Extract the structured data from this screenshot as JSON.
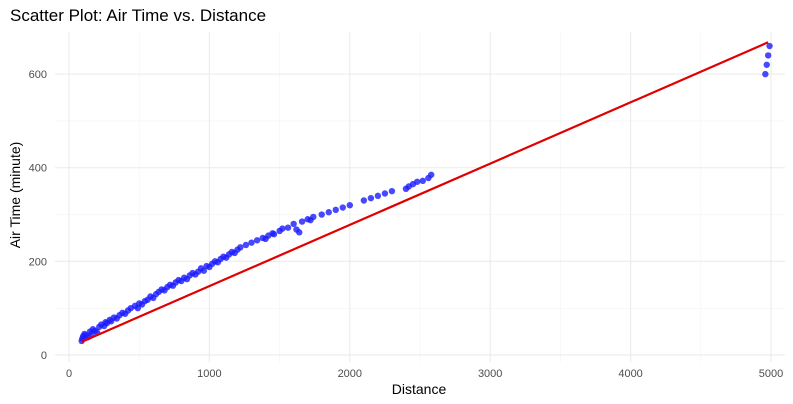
{
  "chart_data": {
    "type": "scatter",
    "title": "Scatter Plot: Air Time vs. Distance",
    "xlabel": "Distance",
    "ylabel": "Air Time (minute)",
    "xlim": [
      -100,
      5100
    ],
    "ylim": [
      -15,
      690
    ],
    "x_ticks": [
      0,
      1000,
      2000,
      3000,
      4000,
      5000
    ],
    "y_ticks": [
      0,
      200,
      400,
      600
    ],
    "grid": true,
    "legend": "none",
    "point_color": "#1a1aff",
    "line_color": "#e00000",
    "series": [
      {
        "kind": "points",
        "x": [
          90,
          95,
          100,
          110,
          120,
          135,
          150,
          160,
          170,
          185,
          200,
          215,
          230,
          250,
          260,
          270,
          290,
          300,
          320,
          340,
          360,
          380,
          400,
          420,
          440,
          470,
          490,
          500,
          520,
          540,
          560,
          580,
          600,
          620,
          640,
          660,
          680,
          700,
          720,
          740,
          760,
          780,
          800,
          820,
          840,
          860,
          880,
          900,
          920,
          940,
          960,
          980,
          1000,
          1020,
          1040,
          1060,
          1080,
          1100,
          1120,
          1140,
          1160,
          1180,
          1200,
          1220,
          1260,
          1300,
          1340,
          1380,
          1400,
          1420,
          1450,
          1460,
          1500,
          1520,
          1560,
          1600,
          1620,
          1640,
          1660,
          1700,
          1720,
          1740,
          1800,
          1850,
          1900,
          1950,
          2000,
          2100,
          2150,
          2200,
          2250,
          2300,
          2400,
          2420,
          2450,
          2480,
          2520,
          2560,
          2580,
          4960,
          4970,
          4980,
          4990
        ],
        "y": [
          30,
          35,
          40,
          45,
          42,
          38,
          50,
          45,
          55,
          52,
          48,
          60,
          65,
          62,
          70,
          68,
          75,
          72,
          80,
          78,
          85,
          90,
          88,
          95,
          100,
          105,
          100,
          110,
          108,
          115,
          118,
          125,
          122,
          130,
          135,
          140,
          138,
          145,
          150,
          148,
          155,
          160,
          158,
          165,
          162,
          170,
          175,
          172,
          178,
          185,
          180,
          190,
          188,
          195,
          200,
          198,
          205,
          210,
          208,
          215,
          220,
          218,
          225,
          230,
          235,
          240,
          245,
          250,
          248,
          255,
          260,
          258,
          265,
          270,
          272,
          280,
          268,
          262,
          285,
          290,
          288,
          295,
          300,
          305,
          310,
          315,
          320,
          330,
          335,
          340,
          345,
          350,
          355,
          360,
          365,
          370,
          372,
          378,
          385,
          600,
          620,
          640,
          660
        ]
      },
      {
        "kind": "trend-line",
        "x": [
          90,
          4980
        ],
        "y": [
          28,
          668
        ]
      }
    ]
  }
}
